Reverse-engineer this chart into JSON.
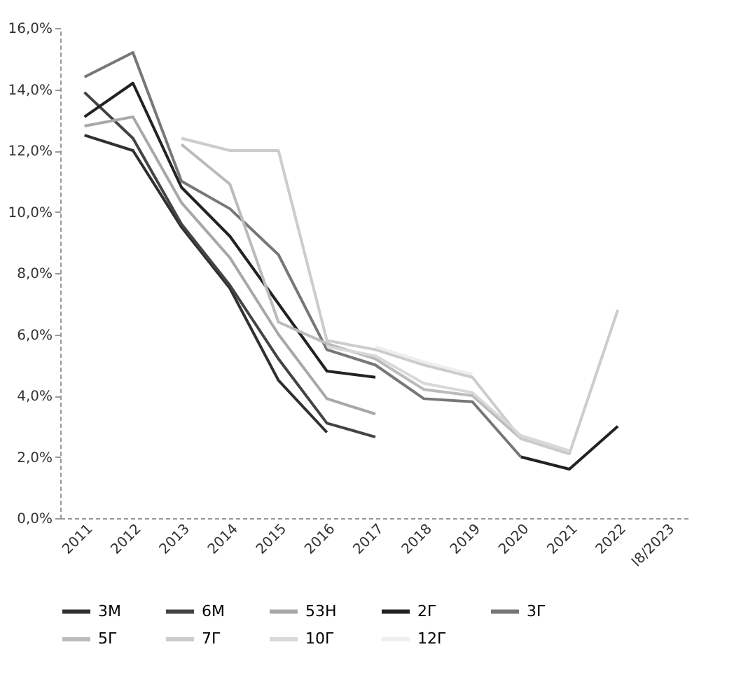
{
  "chart_data": {
    "type": "line",
    "categories": [
      "2011",
      "2012",
      "2013",
      "2014",
      "2015",
      "2016",
      "2017",
      "2018",
      "2019",
      "2020",
      "2021",
      "2022",
      "I8/2023"
    ],
    "series": [
      {
        "name": "3M",
        "color": "#303030",
        "values": [
          12.5,
          12.0,
          9.5,
          7.5,
          4.5,
          2.8,
          null,
          null,
          null,
          null,
          null,
          null,
          null
        ]
      },
      {
        "name": "6M",
        "color": "#444444",
        "values": [
          13.9,
          12.4,
          9.6,
          7.6,
          5.2,
          3.1,
          2.65,
          null,
          null,
          null,
          null,
          null,
          null
        ]
      },
      {
        "name": "53H",
        "color": "#a8a8a8",
        "values": [
          12.8,
          13.1,
          10.3,
          8.5,
          6.0,
          3.9,
          3.4,
          null,
          null,
          null,
          null,
          null,
          null
        ]
      },
      {
        "name": "2Г",
        "color": "#222222",
        "values": [
          13.1,
          14.2,
          10.8,
          9.2,
          7.0,
          4.8,
          4.6,
          null,
          null,
          2.0,
          1.6,
          3.0,
          null
        ]
      },
      {
        "name": "3Г",
        "color": "#777777",
        "values": [
          14.4,
          15.2,
          11.0,
          10.1,
          8.6,
          5.5,
          5.0,
          3.9,
          3.8,
          2.0,
          null,
          null,
          null
        ]
      },
      {
        "name": "5Г",
        "color": "#bbbbbb",
        "values": [
          null,
          null,
          12.2,
          10.9,
          6.4,
          5.7,
          5.2,
          4.2,
          4.0,
          2.6,
          2.1,
          null,
          null
        ]
      },
      {
        "name": "7Г",
        "color": "#cccccc",
        "values": [
          null,
          null,
          12.4,
          12.0,
          12.0,
          5.8,
          5.5,
          5.0,
          4.6,
          2.6,
          2.1,
          6.8,
          null
        ]
      },
      {
        "name": "10Г",
        "color": "#d8d8d8",
        "values": [
          null,
          null,
          null,
          null,
          null,
          5.6,
          5.3,
          4.4,
          4.1,
          2.7,
          2.2,
          null,
          null
        ]
      },
      {
        "name": "12Г",
        "color": "#eeeeee",
        "values": [
          null,
          null,
          null,
          null,
          null,
          null,
          5.6,
          5.1,
          4.7,
          null,
          null,
          null,
          null
        ]
      }
    ],
    "ylim": [
      0,
      16
    ],
    "yticks": [
      {
        "value": 0,
        "label": "0,0%"
      },
      {
        "value": 2,
        "label": "2,0%"
      },
      {
        "value": 4,
        "label": "4,0%"
      },
      {
        "value": 6,
        "label": "6,0%"
      },
      {
        "value": 8,
        "label": "8,0%"
      },
      {
        "value": 10,
        "label": "10,0%"
      },
      {
        "value": 12,
        "label": "12,0%"
      },
      {
        "value": 14,
        "label": "14,0%"
      },
      {
        "value": 16,
        "label": "16,0%"
      }
    ],
    "grid": false,
    "legend": "bottom"
  }
}
